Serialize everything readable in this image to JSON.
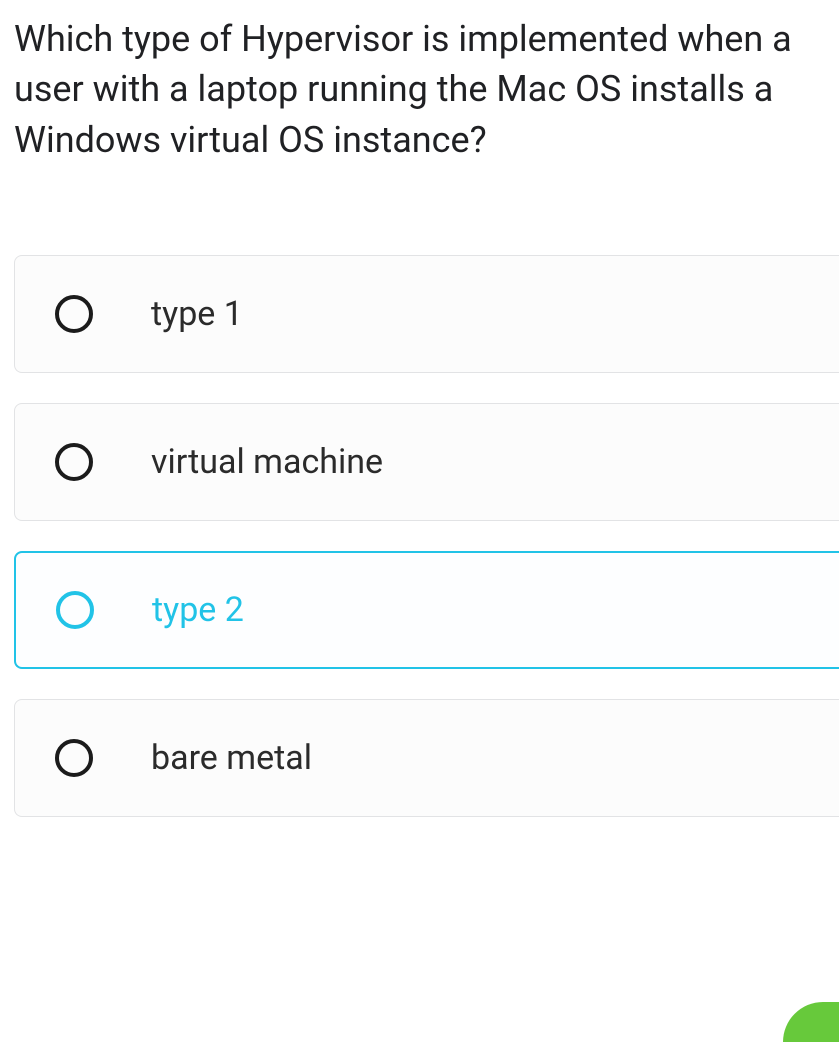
{
  "question": {
    "text": "Which type of Hypervisor is implemented when a user with a laptop running the Mac OS installs a Windows virtual OS instance?",
    "text_color": "#202124",
    "font_size": 36
  },
  "options": [
    {
      "label": "type 1",
      "selected": false
    },
    {
      "label": "virtual machine",
      "selected": false
    },
    {
      "label": "type 2",
      "selected": true
    },
    {
      "label": "bare metal",
      "selected": false
    }
  ],
  "styles": {
    "background": "#ffffff",
    "option_bg": "#fcfcfc",
    "option_border": "#e2e3e5",
    "option_border_radius": 8,
    "radio_border": "#1b1b1b",
    "radio_size": 38,
    "selected_color": "#21c3e7",
    "option_font_size": 34,
    "fab_color": "#67c93b"
  }
}
